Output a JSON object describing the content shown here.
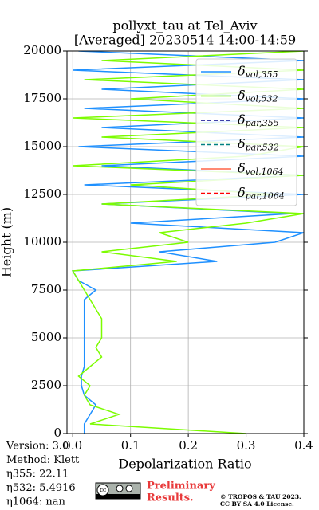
{
  "chart_data": {
    "type": "profile",
    "title": "pollyxt_tau at Tel_Aviv",
    "subtitle": "[Averaged] 20230514 14:00-14:59",
    "x_label": "Depolarization Ratio",
    "y_label": "Height (m)",
    "heights": [
      0,
      500,
      1000,
      1500,
      2000,
      2500,
      3000,
      3500,
      4000,
      4500,
      5000,
      5500,
      6000,
      6500,
      7000,
      7500,
      8000,
      8500,
      9000,
      9500,
      10000,
      10500,
      11000,
      11500,
      12000,
      12500,
      13000,
      13500,
      14000,
      14500,
      15000,
      15500,
      16000,
      16500,
      17000,
      17500,
      18000,
      18500,
      19000,
      19500,
      20000
    ],
    "series": [
      {
        "name": "δvol,355",
        "color": "#1e90ff",
        "linestyle": "solid",
        "values": [
          0.02,
          0.02,
          0.03,
          0.04,
          0.02,
          0.015,
          0.015,
          0.02,
          0.02,
          0.02,
          0.02,
          0.02,
          0.02,
          0.02,
          0.02,
          0.04,
          0.01,
          0.0,
          0.25,
          0.15,
          0.35,
          0.4,
          0.1,
          0.38,
          0.05,
          0.4,
          0.02,
          0.4,
          0.05,
          0.4,
          0.01,
          0.4,
          0.05,
          0.4,
          0.02,
          0.4,
          0.05,
          0.4,
          0.0,
          0.4,
          0.01
        ]
      },
      {
        "name": "δvol,532",
        "color": "#7cfc00",
        "linestyle": "solid",
        "values": [
          0.3,
          0.03,
          0.08,
          0.03,
          0.02,
          0.03,
          0.01,
          0.03,
          0.05,
          0.04,
          0.05,
          0.05,
          0.05,
          0.04,
          0.03,
          0.02,
          0.01,
          0.0,
          0.18,
          0.05,
          0.2,
          0.15,
          0.3,
          0.4,
          0.05,
          0.35,
          0.1,
          0.4,
          0.0,
          0.3,
          0.4,
          0.05,
          0.4,
          0.0,
          0.4,
          0.1,
          0.4,
          0.02,
          0.4,
          0.05,
          0.4
        ]
      },
      {
        "name": "δpar,355",
        "color": "#00008b",
        "linestyle": "dashed",
        "values": [
          null,
          null,
          null,
          null,
          null,
          null,
          null,
          null,
          null,
          null,
          null,
          null,
          null,
          null,
          null,
          null,
          null,
          null,
          null,
          null,
          null,
          null,
          null,
          null,
          null,
          null,
          null,
          null,
          null,
          null,
          null,
          null,
          null,
          null,
          null,
          null,
          null,
          null,
          null,
          null,
          null
        ]
      },
      {
        "name": "δpar,532",
        "color": "#008080",
        "linestyle": "dashed",
        "values": [
          null,
          null,
          null,
          null,
          null,
          null,
          null,
          null,
          null,
          null,
          null,
          null,
          null,
          null,
          null,
          null,
          null,
          null,
          null,
          null,
          null,
          null,
          null,
          null,
          null,
          null,
          null,
          null,
          null,
          null,
          null,
          null,
          null,
          null,
          null,
          null,
          null,
          null,
          null,
          null,
          null
        ]
      },
      {
        "name": "δvol,1064",
        "color": "#ff6347",
        "linestyle": "solid",
        "values": [
          null,
          null,
          null,
          null,
          null,
          null,
          null,
          null,
          null,
          null,
          null,
          null,
          null,
          null,
          null,
          null,
          null,
          null,
          null,
          null,
          null,
          null,
          null,
          null,
          null,
          null,
          null,
          null,
          null,
          null,
          null,
          null,
          null,
          null,
          null,
          null,
          null,
          null,
          null,
          null,
          null
        ]
      },
      {
        "name": "δpar,1064",
        "color": "#ff0000",
        "linestyle": "dashed",
        "values": [
          null,
          null,
          null,
          null,
          null,
          null,
          null,
          null,
          null,
          null,
          null,
          null,
          null,
          null,
          null,
          null,
          null,
          null,
          null,
          null,
          null,
          null,
          null,
          null,
          null,
          null,
          null,
          null,
          null,
          null,
          null,
          null,
          null,
          null,
          null,
          null,
          null,
          null,
          null,
          null,
          null
        ]
      }
    ],
    "xlim": [
      -0.01,
      0.4
    ],
    "ylim": [
      0,
      20000
    ],
    "xticks": [
      {
        "value": 0,
        "label": "0.0"
      },
      0.1,
      0.2,
      0.3,
      0.4
    ],
    "yticks": [
      0,
      2500,
      5000,
      7500,
      10000,
      12500,
      15000,
      17500,
      20000
    ],
    "grid": true,
    "legend": "upper right"
  },
  "info": [
    "Version: 3.0",
    "Method: Klett",
    "η355:  22.11",
    "η532: 5.4916",
    "η1064:    nan"
  ],
  "badge": "cc",
  "notice": [
    "Preliminary",
    "Results."
  ],
  "copyright": [
    "© TROPOS & TAU 2023.",
    "CC BY SA 4.0 License."
  ]
}
